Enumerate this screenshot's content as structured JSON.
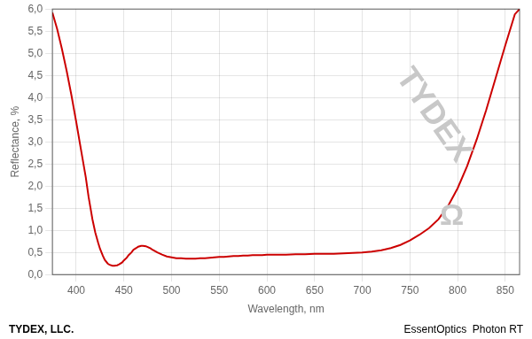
{
  "chart_data": {
    "type": "line",
    "xlabel": "Wavelength, nm",
    "ylabel": "Reflectance, %",
    "annotations": [
      "TYDEX",
      "Ω"
    ],
    "footer_left": "TYDEX, LLC.",
    "footer_right": "EssentOptics  Photon RT",
    "color": "#cc0000",
    "grid": true,
    "xlim": [
      375,
      865
    ],
    "ylim": [
      0.0,
      6.0
    ],
    "xticks": [
      400,
      450,
      500,
      550,
      600,
      650,
      700,
      750,
      800,
      850
    ],
    "yticks": [
      {
        "value": 0.0,
        "label": "0,0"
      },
      {
        "value": 0.5,
        "label": "0,5"
      },
      {
        "value": 1.0,
        "label": "1,0"
      },
      {
        "value": 1.5,
        "label": "1,5"
      },
      {
        "value": 2.0,
        "label": "2,0"
      },
      {
        "value": 2.5,
        "label": "2,5"
      },
      {
        "value": 3.0,
        "label": "3,0"
      },
      {
        "value": 3.5,
        "label": "3,5"
      },
      {
        "value": 4.0,
        "label": "4,0"
      },
      {
        "value": 4.5,
        "label": "4,5"
      },
      {
        "value": 5.0,
        "label": "5,0"
      },
      {
        "value": 5.5,
        "label": "5,5"
      },
      {
        "value": 6.0,
        "label": "6,0"
      }
    ],
    "x": [
      375,
      380,
      385,
      390,
      395,
      400,
      405,
      410,
      413,
      415,
      417,
      420,
      423,
      425,
      428,
      430,
      433,
      435,
      438,
      440,
      443,
      445,
      448,
      450,
      453,
      455,
      458,
      460,
      463,
      465,
      468,
      470,
      473,
      475,
      478,
      480,
      485,
      490,
      495,
      500,
      505,
      510,
      515,
      520,
      525,
      530,
      535,
      540,
      545,
      550,
      555,
      560,
      565,
      570,
      575,
      580,
      585,
      590,
      595,
      600,
      610,
      620,
      630,
      640,
      650,
      660,
      670,
      680,
      690,
      700,
      710,
      720,
      730,
      740,
      750,
      760,
      770,
      780,
      790,
      800,
      810,
      820,
      830,
      840,
      850,
      860,
      865
    ],
    "values": [
      5.92,
      5.55,
      5.1,
      4.6,
      4.05,
      3.45,
      2.82,
      2.2,
      1.75,
      1.5,
      1.25,
      0.95,
      0.72,
      0.58,
      0.42,
      0.33,
      0.25,
      0.22,
      0.2,
      0.2,
      0.21,
      0.23,
      0.27,
      0.32,
      0.38,
      0.44,
      0.5,
      0.56,
      0.6,
      0.63,
      0.65,
      0.65,
      0.64,
      0.62,
      0.59,
      0.56,
      0.5,
      0.45,
      0.41,
      0.39,
      0.37,
      0.37,
      0.36,
      0.36,
      0.36,
      0.37,
      0.37,
      0.38,
      0.39,
      0.4,
      0.4,
      0.41,
      0.42,
      0.42,
      0.43,
      0.43,
      0.44,
      0.44,
      0.44,
      0.45,
      0.45,
      0.45,
      0.46,
      0.46,
      0.47,
      0.47,
      0.47,
      0.48,
      0.49,
      0.5,
      0.52,
      0.55,
      0.6,
      0.67,
      0.77,
      0.9,
      1.05,
      1.25,
      1.55,
      1.95,
      2.45,
      3.05,
      3.72,
      4.45,
      5.18,
      5.88,
      6.0
    ]
  }
}
